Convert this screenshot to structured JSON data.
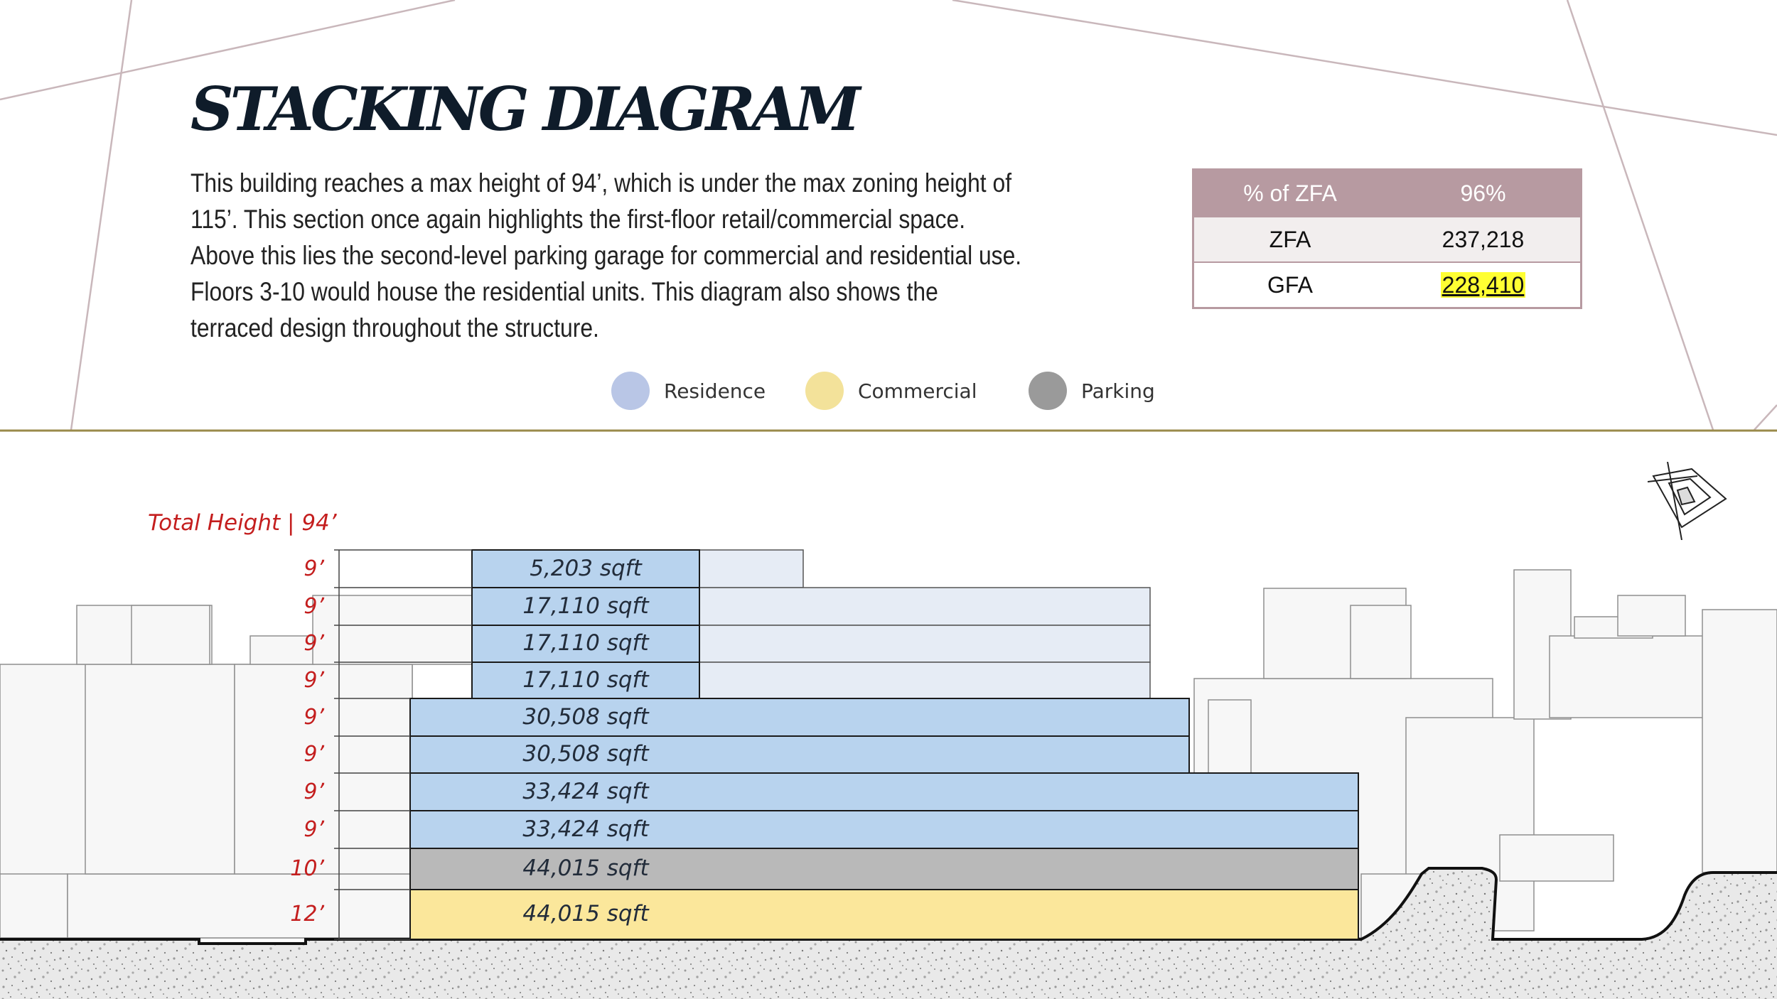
{
  "title": "STACKING DIAGRAM",
  "description": "This building reaches a max height of 94’, which is under the max zoning height of 115’. This section once again highlights the first-floor retail/commercial space. Above this lies the second-level parking garage for commercial and residential use. Floors 3-10 would house the residential units. This diagram also shows the terraced design throughout the structure.",
  "zfa_table": {
    "header": {
      "label": "% of ZFA",
      "value": "96%"
    },
    "rows": [
      {
        "label": "ZFA",
        "value": "237,218"
      },
      {
        "label": "GFA",
        "value": "228,410"
      }
    ]
  },
  "legend": [
    {
      "label": "Residence",
      "color": "#b9c6e6"
    },
    {
      "label": "Commercial",
      "color": "#f3e29a"
    },
    {
      "label": "Parking",
      "color": "#9a9a9a"
    }
  ],
  "total_height_label": "Total Height | 94’",
  "floors": [
    {
      "height": "9’",
      "area": "5,203 sqft",
      "use": "residence"
    },
    {
      "height": "9’",
      "area": "17,110 sqft",
      "use": "residence"
    },
    {
      "height": "9’",
      "area": "17,110 sqft",
      "use": "residence"
    },
    {
      "height": "9’",
      "area": "17,110 sqft",
      "use": "residence"
    },
    {
      "height": "9’",
      "area": "30,508 sqft",
      "use": "residence"
    },
    {
      "height": "9’",
      "area": "30,508 sqft",
      "use": "residence"
    },
    {
      "height": "9’",
      "area": "33,424 sqft",
      "use": "residence"
    },
    {
      "height": "9’",
      "area": "33,424 sqft",
      "use": "residence"
    },
    {
      "height": "10’",
      "area": "44,015 sqft",
      "use": "parking"
    },
    {
      "height": "12’",
      "area": "44,015 sqft",
      "use": "commercial"
    }
  ],
  "colors": {
    "residence": "#b8d3ee",
    "parking": "#b9b9b9",
    "commercial": "#fbe79b",
    "terrace": "#e6ecf5",
    "accent_red": "#c41e1e",
    "divider": "#9a8a4a"
  },
  "compass_icon": "north-compass-icon"
}
